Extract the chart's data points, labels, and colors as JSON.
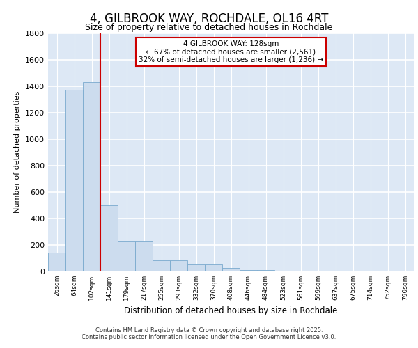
{
  "title": "4, GILBROOK WAY, ROCHDALE, OL16 4RT",
  "subtitle": "Size of property relative to detached houses in Rochdale",
  "xlabel": "Distribution of detached houses by size in Rochdale",
  "ylabel": "Number of detached properties",
  "categories": [
    "26sqm",
    "64sqm",
    "102sqm",
    "141sqm",
    "179sqm",
    "217sqm",
    "255sqm",
    "293sqm",
    "332sqm",
    "370sqm",
    "408sqm",
    "446sqm",
    "484sqm",
    "523sqm",
    "561sqm",
    "599sqm",
    "637sqm",
    "675sqm",
    "714sqm",
    "752sqm",
    "790sqm"
  ],
  "values": [
    140,
    1370,
    1430,
    500,
    230,
    230,
    85,
    85,
    50,
    50,
    25,
    10,
    10,
    0,
    0,
    0,
    0,
    0,
    0,
    0,
    0
  ],
  "bar_color": "#ccdcee",
  "bar_edge_color": "#7aaace",
  "vline_color": "#cc0000",
  "vline_x_index": 2.48,
  "annotation_text": "4 GILBROOK WAY: 128sqm\n← 67% of detached houses are smaller (2,561)\n32% of semi-detached houses are larger (1,236) →",
  "annotation_box_color": "#ffffff",
  "annotation_box_edge": "#cc0000",
  "ylim": [
    0,
    1800
  ],
  "yticks": [
    0,
    200,
    400,
    600,
    800,
    1000,
    1200,
    1400,
    1600,
    1800
  ],
  "bg_color": "#dde8f5",
  "grid_color": "#ffffff",
  "fig_bg_color": "#ffffff",
  "footer_line1": "Contains HM Land Registry data © Crown copyright and database right 2025.",
  "footer_line2": "Contains public sector information licensed under the Open Government Licence v3.0."
}
